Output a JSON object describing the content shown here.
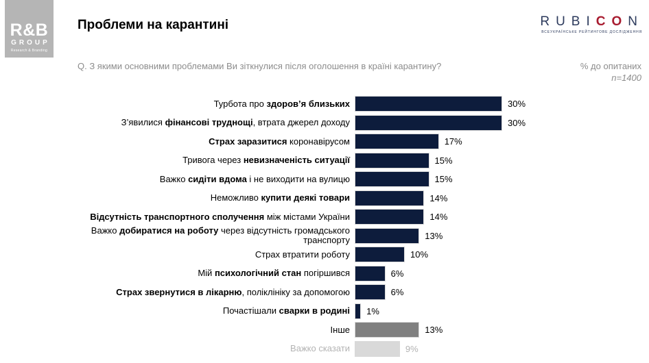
{
  "colors": {
    "bar_navy": "#0d1c3c",
    "bar_other_gray": "#808080",
    "bar_light_gray": "#d9d9d9",
    "bar_border": "#d9d9d9",
    "text_gray": "#8c8c8c",
    "text_muted": "#b3b3b3",
    "logo_bg": "#b5b5b5",
    "rubicon_navy": "#2c3a5c",
    "rubicon_red": "#a81c30"
  },
  "header": {
    "title": "Проблеми на карантині",
    "question": "Q. З якими основними проблемами Ви зіткнулися після оголошення в країні карантину?",
    "note_percent": "% до опитаних",
    "note_sample": "n=1400",
    "rb_logo": {
      "name": "R&B",
      "group": "GROUP",
      "sub": "Research & Branding"
    },
    "rubicon": {
      "part_navy_1": "RUBI",
      "part_red": "CO",
      "part_navy_2": "N",
      "tagline": "ВСЕУКРАЇНСЬКЕ РЕЙТИНГОВЕ ДОСЛІДЖЕННЯ"
    }
  },
  "chart_data": {
    "type": "bar",
    "orientation": "horizontal",
    "unit": "%",
    "xlim": [
      0,
      32
    ],
    "grid": false,
    "legend": false,
    "title": "Проблеми на карантині",
    "categories": [
      "Турбота про здоров’я близьких",
      "З’явилися фінансові труднощі, втрата джерел доходу",
      "Страх заразитися коронавірусом",
      "Тривога через невизначеність ситуації",
      "Важко сидіти вдома і не виходити на вулицю",
      "Неможливо купити деякі товари",
      "Відсутність транспортного сполучення між містами України",
      "Важко добиратися на роботу через відсутність громадського транспорту",
      "Страх втратити роботу",
      "Мій психологічний стан погіршився",
      "Страх звернутися в лікарню, поліклініку за допомогою",
      "Почастішали сварки в родині",
      "Інше",
      "Важко сказати"
    ],
    "values": [
      30,
      30,
      17,
      15,
      15,
      14,
      14,
      13,
      10,
      6,
      6,
      1,
      13,
      9
    ],
    "rows": [
      {
        "segments": [
          {
            "text": "Турбота про ",
            "bold": false
          },
          {
            "text": "здоров’я близьких",
            "bold": true
          }
        ],
        "value": 30,
        "color": "bar_navy",
        "muted": false
      },
      {
        "segments": [
          {
            "text": "З’явилися ",
            "bold": false
          },
          {
            "text": "фінансові труднощі",
            "bold": true
          },
          {
            "text": ", втрата джерел доходу",
            "bold": false
          }
        ],
        "value": 30,
        "color": "bar_navy",
        "muted": false
      },
      {
        "segments": [
          {
            "text": "Страх заразитися",
            "bold": true
          },
          {
            "text": " коронавірусом",
            "bold": false
          }
        ],
        "value": 17,
        "color": "bar_navy",
        "muted": false
      },
      {
        "segments": [
          {
            "text": "Тривога через ",
            "bold": false
          },
          {
            "text": "невизначеність ситуації",
            "bold": true
          }
        ],
        "value": 15,
        "color": "bar_navy",
        "muted": false
      },
      {
        "segments": [
          {
            "text": "Важко ",
            "bold": false
          },
          {
            "text": "сидіти вдома",
            "bold": true
          },
          {
            "text": " і не виходити на вулицю",
            "bold": false
          }
        ],
        "value": 15,
        "color": "bar_navy",
        "muted": false
      },
      {
        "segments": [
          {
            "text": "Неможливо ",
            "bold": false
          },
          {
            "text": "купити деякі товари",
            "bold": true
          }
        ],
        "value": 14,
        "color": "bar_navy",
        "muted": false
      },
      {
        "segments": [
          {
            "text": "Відсутність транспортного сполучення",
            "bold": true
          },
          {
            "text": " між містами України",
            "bold": false
          }
        ],
        "value": 14,
        "color": "bar_navy",
        "muted": false
      },
      {
        "segments": [
          {
            "text": "Важко ",
            "bold": false
          },
          {
            "text": "добиратися на роботу",
            "bold": true
          },
          {
            "text": " через відсутність громадського\nтранспорту",
            "bold": false
          }
        ],
        "value": 13,
        "color": "bar_navy",
        "muted": false
      },
      {
        "segments": [
          {
            "text": "Страх втратити роботу",
            "bold": false
          }
        ],
        "value": 10,
        "color": "bar_navy",
        "muted": false
      },
      {
        "segments": [
          {
            "text": "Мій ",
            "bold": false
          },
          {
            "text": "психологічний стан",
            "bold": true
          },
          {
            "text": " погіршився",
            "bold": false
          }
        ],
        "value": 6,
        "color": "bar_navy",
        "muted": false
      },
      {
        "segments": [
          {
            "text": "Страх звернутися в лікарню",
            "bold": true
          },
          {
            "text": ", поліклініку за допомогою",
            "bold": false
          }
        ],
        "value": 6,
        "color": "bar_navy",
        "muted": false
      },
      {
        "segments": [
          {
            "text": "Почастішали ",
            "bold": false
          },
          {
            "text": "сварки в родині",
            "bold": true
          }
        ],
        "value": 1,
        "color": "bar_navy",
        "muted": false
      },
      {
        "segments": [
          {
            "text": "Інше",
            "bold": false
          }
        ],
        "value": 13,
        "color": "bar_other_gray",
        "muted": false
      },
      {
        "segments": [
          {
            "text": "Важко сказати",
            "bold": false
          }
        ],
        "value": 9,
        "color": "bar_light_gray",
        "muted": true
      }
    ]
  }
}
